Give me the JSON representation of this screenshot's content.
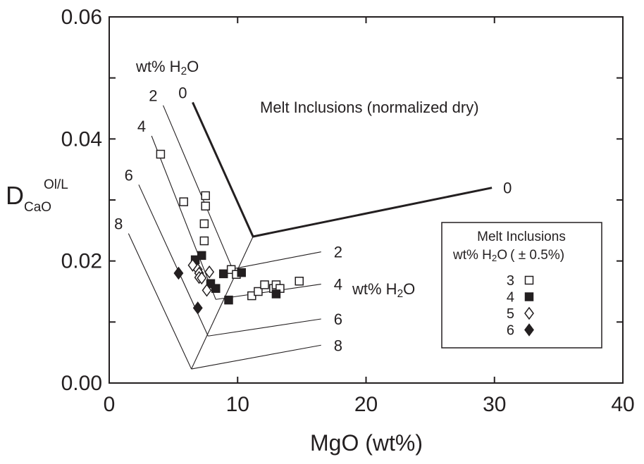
{
  "chart_data": {
    "type": "scatter",
    "title": "",
    "xlabel": "MgO   (wt%)",
    "ylabel": {
      "main": "D",
      "sub": "CaO",
      "sup": "Ol/L"
    },
    "xlim": [
      0,
      40
    ],
    "ylim": [
      0,
      0.06
    ],
    "x_ticks": [
      {
        "value": 0,
        "label": "0"
      },
      {
        "value": 10,
        "label": "10"
      },
      {
        "value": 20,
        "label": "20"
      },
      {
        "value": 30,
        "label": "30"
      },
      {
        "value": 40,
        "label": "40"
      }
    ],
    "y_ticks": [
      {
        "value": 0,
        "label": "0.00"
      },
      {
        "value": 0.02,
        "label": "0.02"
      },
      {
        "value": 0.04,
        "label": "0.04"
      },
      {
        "value": 0.06,
        "label": "0.06"
      }
    ],
    "grid": false,
    "model_curves": {
      "dry_curve": {
        "label": "0",
        "points": [
          [
            6.5,
            0.046
          ],
          [
            11.2,
            0.024
          ],
          [
            29.8,
            0.032
          ]
        ]
      },
      "left_branch_isopleths": [
        {
          "label": "0",
          "x0": 6.5,
          "y0": 0.046,
          "x1": 11.2,
          "y1": 0.024
        },
        {
          "label": "2",
          "x0": 4.2,
          "y0": 0.0455,
          "x1": 9.6,
          "y1": 0.0187
        },
        {
          "label": "4",
          "x0": 3.3,
          "y0": 0.0405,
          "x1": 8.3,
          "y1": 0.0137
        },
        {
          "label": "6",
          "x0": 2.3,
          "y0": 0.0325,
          "x1": 7.7,
          "y1": 0.0077
        },
        {
          "label": "8",
          "x0": 1.5,
          "y0": 0.0245,
          "x1": 6.4,
          "y1": 0.0023
        }
      ],
      "right_branch_isopleths": [
        {
          "label": "2",
          "x0": 9.6,
          "y0": 0.0187,
          "x1": 16.5,
          "y1": 0.0215
        },
        {
          "label": "4",
          "x0": 8.3,
          "y0": 0.0137,
          "x1": 16.5,
          "y1": 0.0162
        },
        {
          "label": "6",
          "x0": 7.7,
          "y0": 0.0077,
          "x1": 16.5,
          "y1": 0.0105
        },
        {
          "label": "8",
          "x0": 6.4,
          "y0": 0.0023,
          "x1": 16.5,
          "y1": 0.0062
        }
      ],
      "vertex_trend": {
        "x0": 6.4,
        "y0": 0.0023,
        "x1": 11.2,
        "y1": 0.024
      }
    },
    "annotations": {
      "h2o_label_top": {
        "text": "wt% H",
        "sub": "2",
        "after": "O"
      },
      "dry_label": "Melt Inclusions (normalized dry)",
      "h2o_label_right": {
        "text": "wt% H",
        "sub": "2",
        "after": "O"
      }
    },
    "legend": {
      "position": "right",
      "title_line1": "Melt Inclusions",
      "title_line2": {
        "text": "wt% H",
        "sub": "2",
        "after": "O",
        "tail": "( ± 0.5%)"
      },
      "entries": [
        {
          "label": "3",
          "marker": "open-square"
        },
        {
          "label": "4",
          "marker": "filled-square"
        },
        {
          "label": "5",
          "marker": "open-diamond"
        },
        {
          "label": "6",
          "marker": "filled-diamond"
        }
      ]
    },
    "series": [
      {
        "name": "3",
        "marker": "open-square",
        "points": [
          [
            4.0,
            0.0375
          ],
          [
            5.8,
            0.0297
          ],
          [
            7.5,
            0.0307
          ],
          [
            7.5,
            0.029
          ],
          [
            7.4,
            0.0261
          ],
          [
            7.4,
            0.0233
          ],
          [
            9.5,
            0.0186
          ],
          [
            9.9,
            0.0178
          ],
          [
            11.1,
            0.0143
          ],
          [
            11.6,
            0.015
          ],
          [
            12.1,
            0.0161
          ],
          [
            12.8,
            0.0155
          ],
          [
            13.0,
            0.0161
          ],
          [
            13.3,
            0.0155
          ],
          [
            14.8,
            0.0167
          ]
        ]
      },
      {
        "name": "4",
        "marker": "filled-square",
        "points": [
          [
            6.7,
            0.0202
          ],
          [
            7.2,
            0.0209
          ],
          [
            7.9,
            0.0163
          ],
          [
            8.3,
            0.0155
          ],
          [
            8.9,
            0.0179
          ],
          [
            9.3,
            0.0136
          ],
          [
            10.3,
            0.0181
          ],
          [
            13.0,
            0.0146
          ]
        ]
      },
      {
        "name": "5",
        "marker": "open-diamond",
        "points": [
          [
            6.5,
            0.0193
          ],
          [
            6.9,
            0.0186
          ],
          [
            7.0,
            0.018
          ],
          [
            7.0,
            0.0173
          ],
          [
            7.2,
            0.0172
          ],
          [
            7.8,
            0.0182
          ],
          [
            7.6,
            0.0152
          ]
        ]
      },
      {
        "name": "6",
        "marker": "filled-diamond",
        "points": [
          [
            5.4,
            0.018
          ],
          [
            6.9,
            0.0123
          ]
        ]
      }
    ]
  }
}
